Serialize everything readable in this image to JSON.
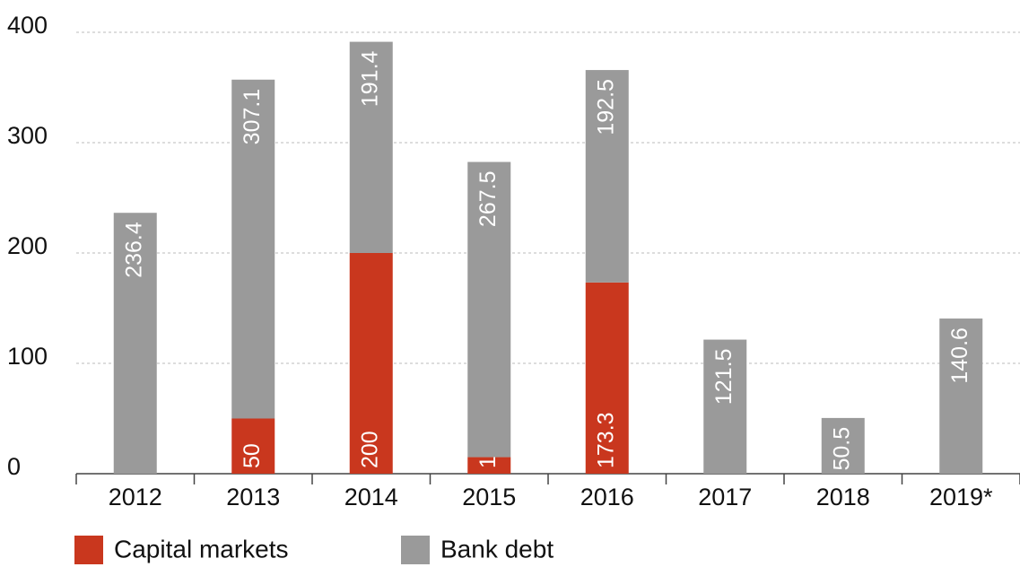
{
  "chart_data": {
    "type": "stacked_bar",
    "categories": [
      "2012",
      "2013",
      "2014",
      "2015",
      "2016",
      "2017",
      "2018",
      "2019*"
    ],
    "series": [
      {
        "name": "Capital markets",
        "color": "#c9371e",
        "values": [
          null,
          50,
          200,
          15,
          173.3,
          null,
          null,
          null
        ]
      },
      {
        "name": "Bank debt",
        "color": "#9a9a9a",
        "values": [
          236.4,
          307.1,
          191.4,
          267.5,
          192.5,
          121.5,
          50.5,
          140.6
        ]
      }
    ],
    "ylim": [
      0,
      400
    ],
    "yticks": [
      0,
      100,
      200,
      300,
      400
    ],
    "grid": true
  }
}
